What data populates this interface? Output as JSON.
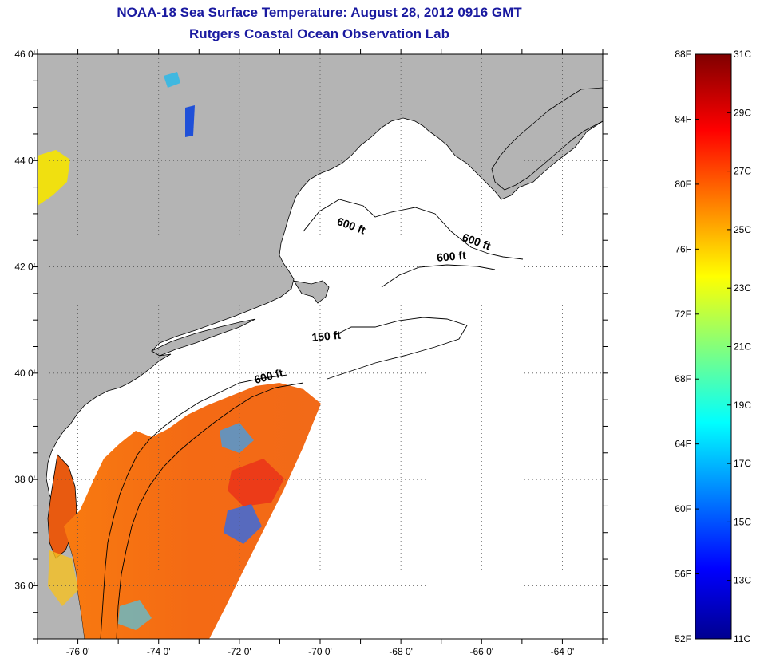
{
  "header": {
    "title": "NOAA-18 Sea Surface Temperature:  August 28, 2012 0916 GMT",
    "subtitle": "Rutgers Coastal Ocean Observation Lab"
  },
  "map": {
    "lon_range": [
      -77,
      -63
    ],
    "lat_range": [
      35,
      46
    ],
    "lon_ticks": [
      "-76 0'",
      "-74 0'",
      "-72 0'",
      "-70 0'",
      "-68 0'",
      "-66 0'",
      "-64 0'"
    ],
    "lat_ticks": [
      "46 0'",
      "44 0'",
      "42 0'",
      "40 0'",
      "38 0'",
      "36 0'"
    ],
    "colors": {
      "land": "#b4b4b4",
      "ocean_nodata": "#ffffff",
      "coast": "#000000"
    },
    "isobaths": [
      {
        "label": "600 ft",
        "lon": -69.6,
        "lat": 42.8
      },
      {
        "label": "600 ft",
        "lon": -66.5,
        "lat": 42.5
      },
      {
        "label": "600 ft",
        "lon": -67.1,
        "lat": 42.1
      },
      {
        "label": "150 ft",
        "lon": -70.2,
        "lat": 40.6
      },
      {
        "label": "600 ft",
        "lon": -71.6,
        "lat": 39.8
      }
    ]
  },
  "colorbar": {
    "f_labels": [
      "88F",
      "84F",
      "80F",
      "76F",
      "72F",
      "68F",
      "64F",
      "60F",
      "56F",
      "52F"
    ],
    "c_labels": [
      "31C",
      "29C",
      "27C",
      "25C",
      "23C",
      "21C",
      "19C",
      "17C",
      "15C",
      "13C",
      "11C"
    ],
    "range_c": [
      11,
      31
    ],
    "range_f": [
      52,
      88
    ]
  }
}
